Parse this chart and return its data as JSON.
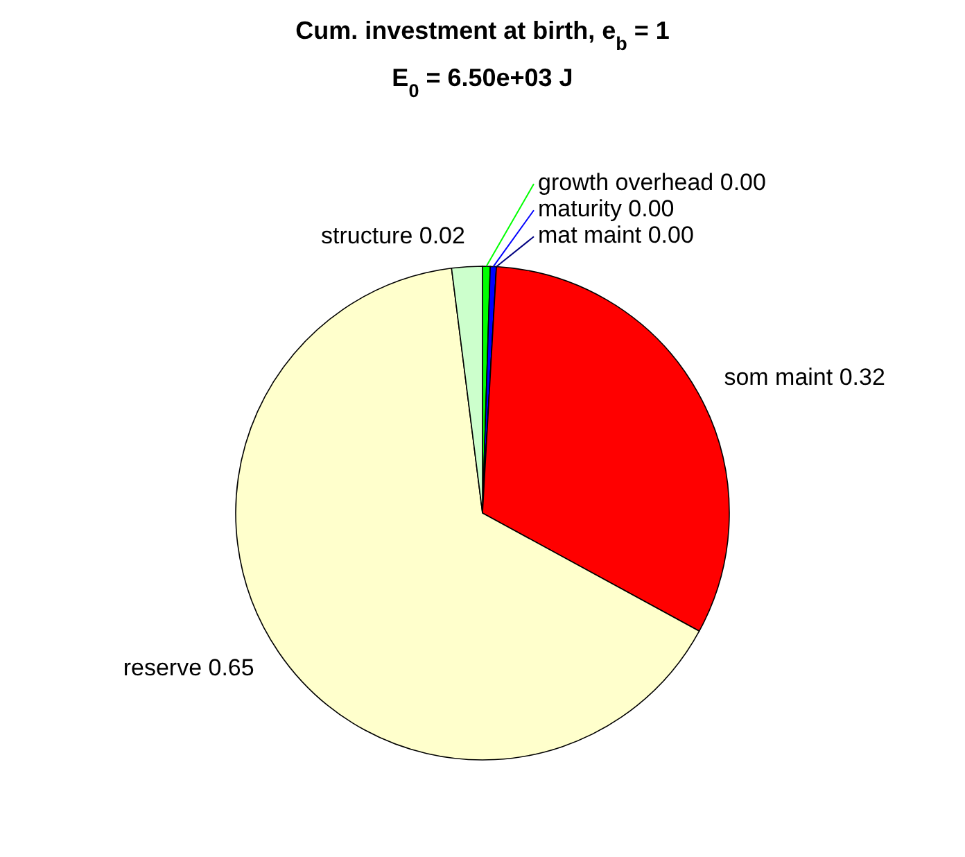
{
  "chart_data": {
    "type": "pie",
    "title": "Cum. investment at birth, e$_{b}$ = 1",
    "subtitle": "E$_{0}$ = 6.50e+03 J",
    "categories": [
      "growth overhead",
      "maturity",
      "mat maint",
      "som maint",
      "reserve",
      "structure"
    ],
    "values": [
      0.005,
      0.004,
      0,
      0.32,
      0.65,
      0.02
    ],
    "value_labels": [
      "0.00",
      "0.00",
      "0.00",
      "0.32",
      "0.65",
      "0.02"
    ],
    "colors": [
      "#00ff00",
      "#0000ff",
      "#000080",
      "#ff0000",
      "#ffffcc",
      "#ccffcc"
    ]
  }
}
